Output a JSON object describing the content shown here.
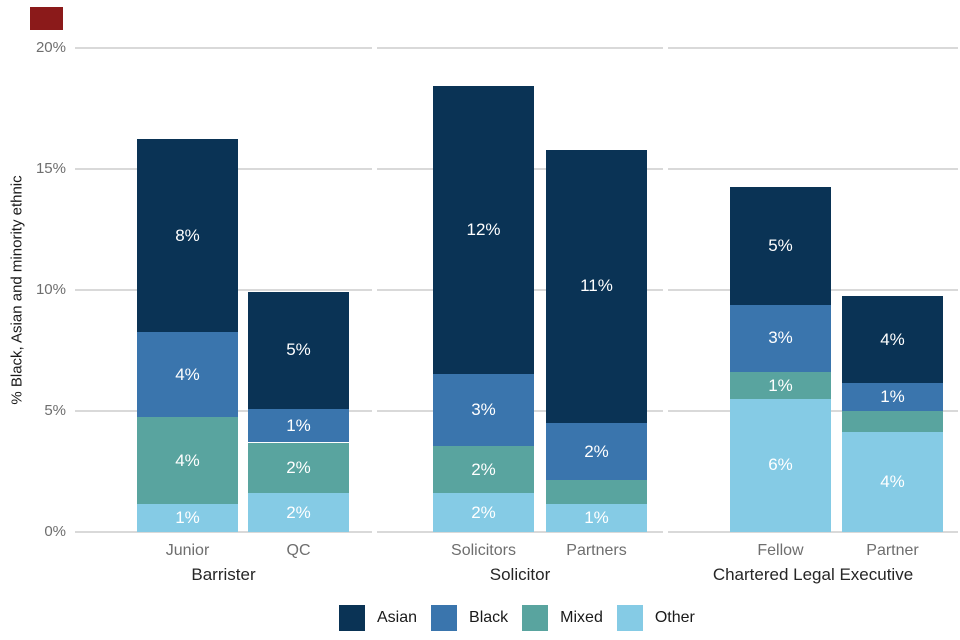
{
  "page": {
    "background": "#ffffff",
    "top_left_marker_color": "#8b1a1a"
  },
  "chart_data": {
    "type": "bar",
    "stacked": true,
    "title": "",
    "xlabel": "",
    "ylabel": "% Black, Asian and minority ethnic",
    "ylim": [
      0,
      20
    ],
    "yticks": [
      {
        "value": 0,
        "label": "0%"
      },
      {
        "value": 5,
        "label": "5%"
      },
      {
        "value": 10,
        "label": "10%"
      },
      {
        "value": 15,
        "label": "15%"
      },
      {
        "value": 20,
        "label": "20%"
      }
    ],
    "grid": "horizontal light-gray gridlines on white, drawn per facet panel",
    "stack_order_bottom_to_top": [
      "Other",
      "Mixed",
      "Black",
      "Asian"
    ],
    "series_colors": {
      "Asian": "#0a3355",
      "Black": "#3a75ad",
      "Mixed": "#59a49f",
      "Other": "#85cbe5"
    },
    "legend": {
      "position": "bottom",
      "entries": [
        "Asian",
        "Black",
        "Mixed",
        "Other"
      ]
    },
    "facets": [
      {
        "label": "Barrister",
        "bars": [
          {
            "category": "Junior",
            "total_pct": 16.25,
            "segments": [
              {
                "series": "Other",
                "value": 1.15,
                "label": "1%"
              },
              {
                "series": "Mixed",
                "value": 3.6,
                "label": "4%"
              },
              {
                "series": "Black",
                "value": 3.5,
                "label": "4%"
              },
              {
                "series": "Asian",
                "value": 8.0,
                "label": "8%"
              }
            ]
          },
          {
            "category": "QC",
            "total_pct": 9.9,
            "segments": [
              {
                "series": "Other",
                "value": 1.6,
                "label": "2%"
              },
              {
                "series": "Mixed",
                "value": 2.1,
                "label": "2%"
              },
              {
                "series": "Black",
                "value": 1.4,
                "label": "1%"
              },
              {
                "series": "Asian",
                "value": 4.8,
                "label": "5%"
              }
            ]
          }
        ]
      },
      {
        "label": "Solicitor",
        "bars": [
          {
            "category": "Solicitors",
            "total_pct": 18.45,
            "segments": [
              {
                "series": "Other",
                "value": 1.6,
                "label": "2%"
              },
              {
                "series": "Mixed",
                "value": 1.95,
                "label": "2%"
              },
              {
                "series": "Black",
                "value": 3.0,
                "label": "3%"
              },
              {
                "series": "Asian",
                "value": 11.9,
                "label": "12%"
              }
            ]
          },
          {
            "category": "Partners",
            "total_pct": 15.8,
            "segments": [
              {
                "series": "Other",
                "value": 1.15,
                "label": "1%"
              },
              {
                "series": "Mixed",
                "value": 1.0,
                "label": null
              },
              {
                "series": "Black",
                "value": 2.35,
                "label": "2%"
              },
              {
                "series": "Asian",
                "value": 11.3,
                "label": "11%"
              }
            ]
          }
        ]
      },
      {
        "label": "Chartered Legal Executive",
        "bars": [
          {
            "category": "Fellow",
            "total_pct": 14.25,
            "segments": [
              {
                "series": "Other",
                "value": 5.5,
                "label": "6%"
              },
              {
                "series": "Mixed",
                "value": 1.1,
                "label": "1%"
              },
              {
                "series": "Black",
                "value": 2.8,
                "label": "3%"
              },
              {
                "series": "Asian",
                "value": 4.85,
                "label": "5%"
              }
            ]
          },
          {
            "category": "Partner",
            "total_pct": 9.75,
            "segments": [
              {
                "series": "Other",
                "value": 4.15,
                "label": "4%"
              },
              {
                "series": "Mixed",
                "value": 0.85,
                "label": null
              },
              {
                "series": "Black",
                "value": 1.15,
                "label": "1%"
              },
              {
                "series": "Asian",
                "value": 3.6,
                "label": "4%"
              }
            ]
          }
        ]
      }
    ]
  },
  "colors": {
    "gridline": "#d9d9d9",
    "tick_text": "#6e6e6e",
    "category_text": "#6e6e6e",
    "facet_text": "#262626",
    "bar_label_text": "#ffffff",
    "legend_text": "#1a1a1a"
  }
}
